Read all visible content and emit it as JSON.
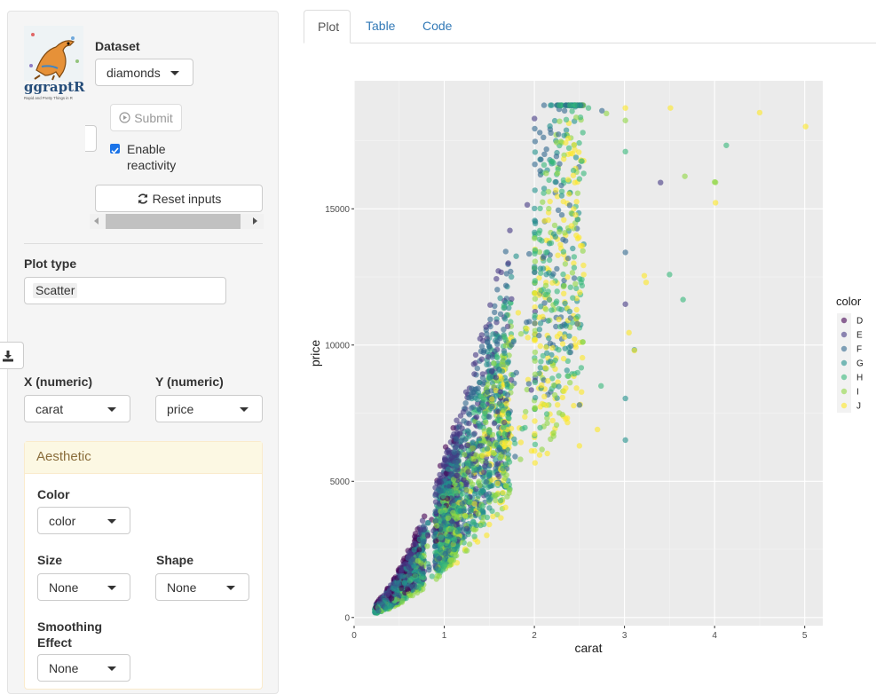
{
  "logo": {
    "text": "ggraptR",
    "tagline": "Rapid and Pretty Things in R"
  },
  "dataset": {
    "label": "Dataset",
    "value": "diamonds"
  },
  "submit_label": "Submit",
  "reactivity_label_line1": "Enable",
  "reactivity_label_line2": "reactivity",
  "reactivity_checked": true,
  "reset_label": "Reset inputs",
  "plot_type": {
    "label": "Plot type",
    "value": "Scatter"
  },
  "x": {
    "label": "X (numeric)",
    "value": "carat"
  },
  "y": {
    "label": "Y (numeric)",
    "value": "price"
  },
  "aesthetic": {
    "title": "Aesthetic",
    "color_label": "Color",
    "color_value": "color",
    "size_label": "Size",
    "size_value": "None",
    "shape_label": "Shape",
    "shape_value": "None",
    "smooth_label_line1": "Smoothing",
    "smooth_label_line2": "Effect",
    "smooth_value": "None"
  },
  "tabs": [
    "Plot",
    "Table",
    "Code"
  ],
  "active_tab": "Plot",
  "chart_data": {
    "type": "scatter",
    "xlabel": "carat",
    "ylabel": "price",
    "xlim": [
      0,
      5.2
    ],
    "ylim": [
      -300,
      19700
    ],
    "xticks": [
      0,
      1,
      2,
      3,
      4,
      5
    ],
    "yticks": [
      0,
      5000,
      10000,
      15000
    ],
    "legend": {
      "title": "color",
      "position": "right",
      "entries": [
        "D",
        "E",
        "F",
        "G",
        "H",
        "I",
        "J"
      ]
    },
    "series_colors": {
      "D": "#440154",
      "E": "#443983",
      "F": "#31688e",
      "G": "#21918c",
      "H": "#35b779",
      "I": "#90d743",
      "J": "#fde725"
    },
    "point_alpha": 0.6,
    "outlier_points": [
      {
        "color": "J",
        "x": 5.01,
        "y": 18018
      },
      {
        "color": "J",
        "x": 4.5,
        "y": 18531
      },
      {
        "color": "J",
        "x": 4.01,
        "y": 15223
      },
      {
        "color": "I",
        "x": 4.01,
        "y": 15970
      },
      {
        "color": "I",
        "x": 4.0,
        "y": 15984
      },
      {
        "color": "H",
        "x": 4.13,
        "y": 17329
      },
      {
        "color": "I",
        "x": 3.67,
        "y": 16193
      },
      {
        "color": "E",
        "x": 3.4,
        "y": 15964
      },
      {
        "color": "J",
        "x": 3.51,
        "y": 18701
      },
      {
        "color": "H",
        "x": 3.65,
        "y": 11668
      },
      {
        "color": "H",
        "x": 3.5,
        "y": 12587
      },
      {
        "color": "G",
        "x": 3.01,
        "y": 6512
      },
      {
        "color": "G",
        "x": 3.01,
        "y": 8040
      },
      {
        "color": "J",
        "x": 3.05,
        "y": 10453
      },
      {
        "color": "G",
        "x": 3.11,
        "y": 9823
      },
      {
        "color": "J",
        "x": 3.22,
        "y": 12545
      },
      {
        "color": "J",
        "x": 3.24,
        "y": 12300
      },
      {
        "color": "I",
        "x": 3.01,
        "y": 18242
      },
      {
        "color": "J",
        "x": 3.01,
        "y": 18700
      },
      {
        "color": "H",
        "x": 3.01,
        "y": 17100
      },
      {
        "color": "F",
        "x": 3.01,
        "y": 13400
      },
      {
        "color": "E",
        "x": 3.01,
        "y": 11500
      },
      {
        "color": "J",
        "x": 3.11,
        "y": 9800
      },
      {
        "color": "F",
        "x": 2.5,
        "y": 7800
      },
      {
        "color": "J",
        "x": 2.7,
        "y": 6900
      },
      {
        "color": "J",
        "x": 2.5,
        "y": 6300
      },
      {
        "color": "H",
        "x": 2.74,
        "y": 8500
      },
      {
        "color": "I",
        "x": 2.8,
        "y": 18500
      },
      {
        "color": "H",
        "x": 2.6,
        "y": 18700
      },
      {
        "color": "F",
        "x": 2.75,
        "y": 18600
      }
    ]
  }
}
